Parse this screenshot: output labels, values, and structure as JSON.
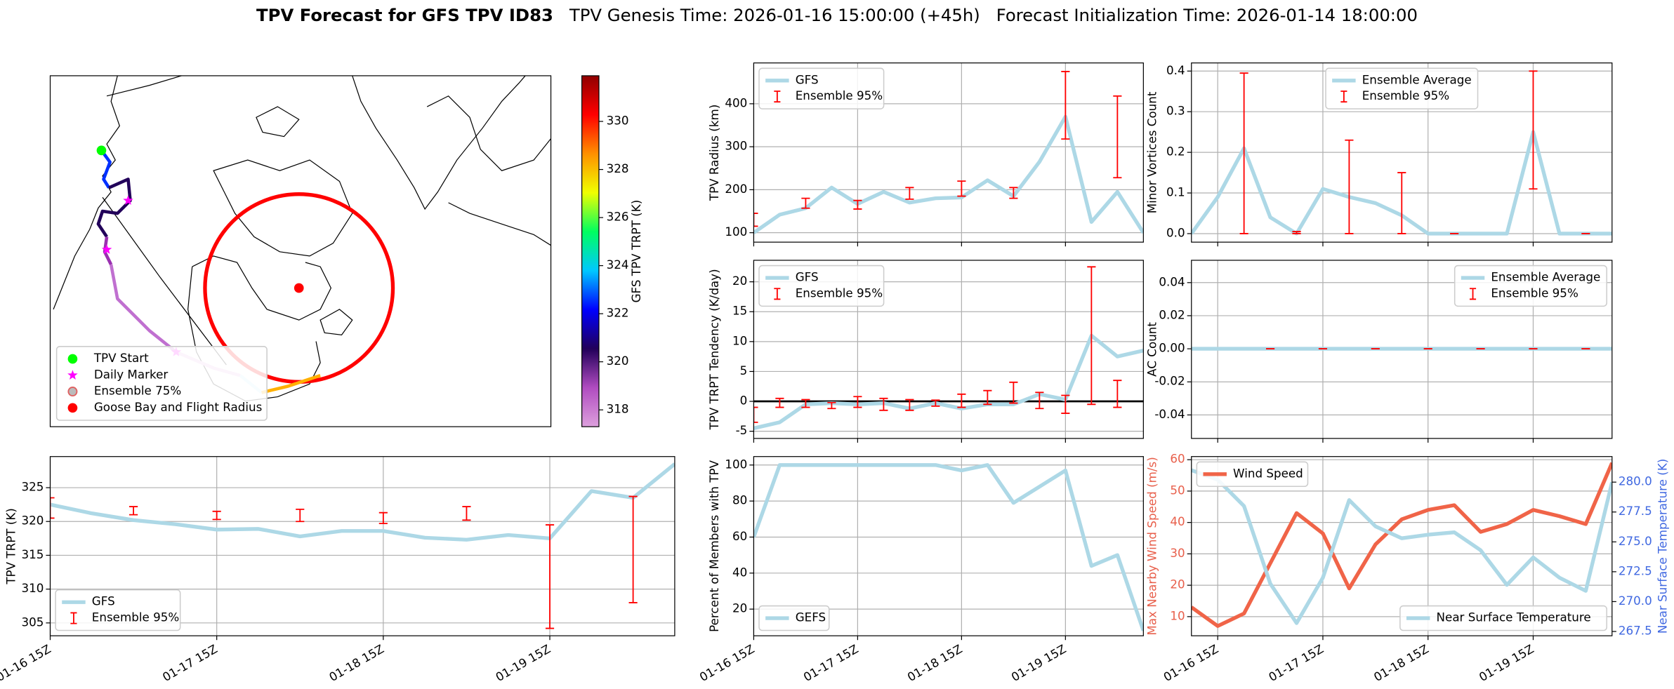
{
  "suptitle": {
    "bold": "TPV Forecast for GFS TPV ID83",
    "genesis": "TPV Genesis Time: 2026-01-16 15:00:00 (+45h)",
    "init": "Forecast Initialization Time: 2026-01-14 18:00:00"
  },
  "chart_data": [
    {
      "type": "map",
      "colorbar_label": "GFS TPV TRPT (K)",
      "clim": [
        317.3,
        331.9
      ],
      "cticks": [
        318,
        320,
        322,
        324,
        326,
        328,
        330
      ],
      "colormap": [
        "#dda0dd",
        "#b04cc0",
        "#22005a",
        "#0000ff",
        "#00c8ff",
        "#00ff60",
        "#f0ff00",
        "#ff9000",
        "#ff0000",
        "#900000"
      ],
      "legend_corner": "lower left",
      "legend": [
        {
          "name": "TPV Start",
          "color": "#00ff00",
          "marker": "circle"
        },
        {
          "name": "Daily Marker",
          "color": "#ff00ff",
          "marker": "star"
        },
        {
          "name": "Ensemble 75%",
          "color": "#e06060",
          "marker": "ring"
        },
        {
          "name": "Goose Bay and Flight Radius",
          "color": "#ff0000",
          "marker": "circle"
        }
      ]
    },
    {
      "type": "line",
      "ylabel": "TPV Radius (km)",
      "grid": true,
      "legend": "upper left",
      "x": [
        "01-16 15Z",
        "01-16 21Z",
        "01-17 03Z",
        "01-17 09Z",
        "01-17 15Z",
        "01-17 21Z",
        "01-18 03Z",
        "01-18 09Z",
        "01-18 15Z",
        "01-18 21Z",
        "01-19 03Z",
        "01-19 09Z",
        "01-19 15Z",
        "01-19 21Z",
        "01-20 03Z",
        "01-20 09Z"
      ],
      "xlim": [
        "01-16 15Z",
        "01-20 09Z"
      ],
      "xticks": [
        "01-16 15Z",
        "01-17 15Z",
        "01-18 15Z",
        "01-19 15Z"
      ],
      "ylim": [
        78,
        495
      ],
      "yticks": [
        100,
        200,
        300,
        400
      ],
      "series": [
        {
          "name": "GFS",
          "color": "#add8e6",
          "values": [
            100,
            142,
            157,
            205,
            167,
            195,
            170,
            180,
            182,
            222,
            185,
            265,
            370,
            125,
            195,
            100
          ]
        },
        {
          "name": "Ensemble 95%",
          "type": "errorbar",
          "color": "#ff0000",
          "low": [
            115,
            null,
            157,
            null,
            155,
            null,
            178,
            null,
            185,
            null,
            180,
            null,
            318,
            null,
            228,
            null
          ],
          "high": [
            145,
            null,
            180,
            null,
            175,
            null,
            205,
            null,
            220,
            null,
            205,
            null,
            475,
            null,
            418,
            null
          ]
        }
      ]
    },
    {
      "type": "line",
      "ylabel": "Minor Vortices Count",
      "grid": true,
      "legend": "upper center",
      "x": [
        "01-16 09Z",
        "01-16 15Z",
        "01-16 21Z",
        "01-17 03Z",
        "01-17 09Z",
        "01-17 15Z",
        "01-17 21Z",
        "01-18 03Z",
        "01-18 09Z",
        "01-18 15Z",
        "01-18 21Z",
        "01-19 03Z",
        "01-19 09Z",
        "01-19 15Z",
        "01-19 21Z",
        "01-20 03Z",
        "01-20 09Z"
      ],
      "xlim": [
        "01-16 09Z",
        "01-20 09Z"
      ],
      "xticks": [
        "01-16 15Z",
        "01-17 15Z",
        "01-18 15Z",
        "01-19 15Z"
      ],
      "ylim": [
        -0.021,
        0.42
      ],
      "yticks": [
        {
          "value": 0,
          "label": "0.0"
        },
        0.1,
        0.2,
        0.3,
        0.4
      ],
      "series": [
        {
          "name": "Ensemble Average",
          "color": "#add8e6",
          "values": [
            0,
            0.09,
            0.21,
            0.04,
            0,
            0.11,
            0.09,
            0.075,
            0.045,
            0,
            0,
            0,
            0,
            0.25,
            0,
            0,
            0
          ]
        },
        {
          "name": "Ensemble 95%",
          "type": "errorbar",
          "color": "#ff0000",
          "low": [
            null,
            null,
            0,
            null,
            0,
            null,
            0,
            null,
            0,
            null,
            0,
            null,
            null,
            0.11,
            null,
            0,
            null
          ],
          "high": [
            null,
            null,
            0.395,
            null,
            0.005,
            null,
            0.23,
            null,
            0.15,
            null,
            0,
            null,
            null,
            0.4,
            null,
            0,
            null
          ]
        }
      ]
    },
    {
      "type": "line",
      "ylabel": "TPV TRPT Tendency (K/day)",
      "grid": true,
      "legend": "upper left",
      "hline": 0,
      "hline_color": "#000000",
      "x": [
        "01-16 15Z",
        "01-16 21Z",
        "01-17 03Z",
        "01-17 09Z",
        "01-17 15Z",
        "01-17 21Z",
        "01-18 03Z",
        "01-18 09Z",
        "01-18 15Z",
        "01-18 21Z",
        "01-19 03Z",
        "01-19 09Z",
        "01-19 15Z",
        "01-19 21Z",
        "01-20 03Z",
        "01-20 09Z"
      ],
      "xlim": [
        "01-16 15Z",
        "01-20 09Z"
      ],
      "xticks": [
        "01-16 15Z",
        "01-17 15Z",
        "01-18 15Z",
        "01-19 15Z"
      ],
      "ylim": [
        -6.2,
        23.6
      ],
      "yticks": [
        -5,
        0,
        5,
        10,
        15,
        20
      ],
      "series": [
        {
          "name": "GFS",
          "color": "#add8e6",
          "values": [
            -4.5,
            -3.5,
            -0.5,
            -0.3,
            -0.5,
            -0.3,
            -1.2,
            -0.3,
            -1.2,
            -0.5,
            -0.5,
            1.2,
            0.3,
            11,
            7.5,
            8.5
          ]
        },
        {
          "name": "Ensemble 95%",
          "type": "errorbar",
          "color": "#ff0000",
          "low": [
            -3.5,
            -1,
            -1,
            -1.2,
            -1,
            -1.5,
            -1.5,
            -0.8,
            -1,
            -0.5,
            -0.3,
            -1.2,
            -2,
            -0.5,
            -1,
            null
          ],
          "high": [
            -1,
            0.5,
            0.3,
            -0.2,
            0.8,
            0.5,
            0.3,
            0.2,
            1.2,
            1.8,
            3.2,
            1.5,
            1,
            22.5,
            3.5,
            null
          ]
        }
      ]
    },
    {
      "type": "line",
      "ylabel": "AC Count",
      "grid": true,
      "legend": "upper right",
      "x": [
        "01-16 09Z",
        "01-16 15Z",
        "01-16 21Z",
        "01-17 03Z",
        "01-17 09Z",
        "01-17 15Z",
        "01-17 21Z",
        "01-18 03Z",
        "01-18 09Z",
        "01-18 15Z",
        "01-18 21Z",
        "01-19 03Z",
        "01-19 09Z",
        "01-19 15Z",
        "01-19 21Z",
        "01-20 03Z",
        "01-20 09Z"
      ],
      "xlim": [
        "01-16 09Z",
        "01-20 09Z"
      ],
      "xticks": [
        "01-16 15Z",
        "01-17 15Z",
        "01-18 15Z",
        "01-19 15Z"
      ],
      "ylim": [
        -0.0542,
        0.0535
      ],
      "yticks": [
        -0.04,
        -0.02,
        {
          "value": 0,
          "label": "0.00"
        },
        0.02,
        0.04
      ],
      "series": [
        {
          "name": "Ensemble Average",
          "color": "#add8e6",
          "values": [
            0,
            0,
            0,
            0,
            0,
            0,
            0,
            0,
            0,
            0,
            0,
            0,
            0,
            0,
            0,
            0,
            0
          ]
        },
        {
          "name": "Ensemble 95%",
          "type": "errorbar",
          "color": "#ff0000",
          "low": [
            null,
            null,
            null,
            0,
            null,
            0,
            null,
            0,
            null,
            0,
            null,
            0,
            null,
            0,
            null,
            0,
            null
          ],
          "high": [
            null,
            null,
            null,
            0,
            null,
            0,
            null,
            0,
            null,
            0,
            null,
            0,
            null,
            0,
            null,
            0,
            null
          ]
        }
      ]
    },
    {
      "type": "line",
      "ylabel": "TPV TRPT (K)",
      "grid": true,
      "legend": "lower left",
      "x": [
        "01-16 15Z",
        "01-16 21Z",
        "01-17 03Z",
        "01-17 09Z",
        "01-17 15Z",
        "01-17 21Z",
        "01-18 03Z",
        "01-18 09Z",
        "01-18 15Z",
        "01-18 21Z",
        "01-19 03Z",
        "01-19 09Z",
        "01-19 15Z",
        "01-19 21Z",
        "01-20 03Z",
        "01-20 09Z"
      ],
      "xlim": [
        "01-16 15Z",
        "01-20 09Z"
      ],
      "xticks": [
        "01-16 15Z",
        "01-17 15Z",
        "01-18 15Z",
        "01-19 15Z"
      ],
      "ylim": [
        303.1,
        329.6
      ],
      "yticks": [
        305,
        310,
        315,
        320,
        325
      ],
      "series": [
        {
          "name": "GFS",
          "color": "#add8e6",
          "values": [
            322.5,
            321.2,
            320.2,
            319.6,
            318.8,
            318.9,
            317.8,
            318.6,
            318.6,
            317.6,
            317.3,
            318,
            317.5,
            324.5,
            323.5,
            328.5
          ]
        },
        {
          "name": "Ensemble 95%",
          "type": "errorbar",
          "color": "#ff0000",
          "low": [
            320.5,
            null,
            321,
            null,
            320.3,
            null,
            320,
            null,
            319.7,
            null,
            320.2,
            null,
            304.2,
            null,
            308,
            null
          ],
          "high": [
            323.5,
            null,
            322.2,
            null,
            321.5,
            null,
            321.8,
            null,
            321.3,
            null,
            322.2,
            null,
            319.5,
            null,
            323.7,
            null
          ]
        }
      ]
    },
    {
      "type": "line",
      "ylabel": "Percent of Members with TPV",
      "grid": true,
      "legend": "lower left",
      "x": [
        "01-16 15Z",
        "01-16 21Z",
        "01-17 03Z",
        "01-17 09Z",
        "01-17 15Z",
        "01-17 21Z",
        "01-18 03Z",
        "01-18 09Z",
        "01-18 15Z",
        "01-18 21Z",
        "01-19 03Z",
        "01-19 09Z",
        "01-19 15Z",
        "01-19 21Z",
        "01-20 03Z",
        "01-20 09Z"
      ],
      "xlim": [
        "01-16 15Z",
        "01-20 09Z"
      ],
      "xticks": [
        "01-16 15Z",
        "01-17 15Z",
        "01-18 15Z",
        "01-19 15Z"
      ],
      "ylim": [
        5.2,
        104.7
      ],
      "yticks": [
        20,
        40,
        60,
        80,
        100
      ],
      "series": [
        {
          "name": "GEFS",
          "color": "#add8e6",
          "values": [
            60,
            100,
            100,
            100,
            100,
            100,
            100,
            100,
            97,
            100,
            79,
            88,
            97,
            44,
            50,
            8
          ]
        }
      ]
    },
    {
      "type": "line",
      "ylabel": "Max Nearby Wind Speed (m/s)",
      "y2label": "Near Surface Temperature (K)",
      "ycolor": "#e8604c",
      "y2color": "#4169e1",
      "grid": true,
      "legend": "upper left",
      "legend2": "lower right",
      "x": [
        "01-16 09Z",
        "01-16 15Z",
        "01-16 21Z",
        "01-17 03Z",
        "01-17 09Z",
        "01-17 15Z",
        "01-17 21Z",
        "01-18 03Z",
        "01-18 09Z",
        "01-18 15Z",
        "01-18 21Z",
        "01-19 03Z",
        "01-19 09Z",
        "01-19 15Z",
        "01-19 21Z",
        "01-20 03Z",
        "01-20 09Z"
      ],
      "xlim": [
        "01-16 09Z",
        "01-20 09Z"
      ],
      "xticks": [
        "01-16 15Z",
        "01-17 15Z",
        "01-18 15Z",
        "01-19 15Z"
      ],
      "ylim": [
        3.9,
        61
      ],
      "yticks": [
        10,
        20,
        30,
        40,
        50,
        60
      ],
      "y2lim": [
        267.14,
        282.14
      ],
      "y2ticks": [
        267.5,
        {
          "value": 270,
          "label": "270.0"
        },
        272.5,
        {
          "value": 275,
          "label": "275.0"
        },
        277.5,
        {
          "value": 280,
          "label": "280.0"
        }
      ],
      "series": [
        {
          "name": "Wind Speed",
          "color": "#f06448",
          "values": [
            13,
            7,
            11,
            27,
            43,
            36.5,
            19,
            33,
            41,
            44,
            45.5,
            37,
            39.5,
            44,
            42,
            39.5,
            59
          ]
        },
        {
          "name": "Near Surface Temperature",
          "color": "#add8e6",
          "axis": "y2",
          "values": [
            281,
            280.2,
            278,
            271.5,
            268.2,
            272,
            278.5,
            276.3,
            275.3,
            275.6,
            275.8,
            274.3,
            271.4,
            273.7,
            272,
            270.9,
            280
          ]
        }
      ]
    }
  ]
}
